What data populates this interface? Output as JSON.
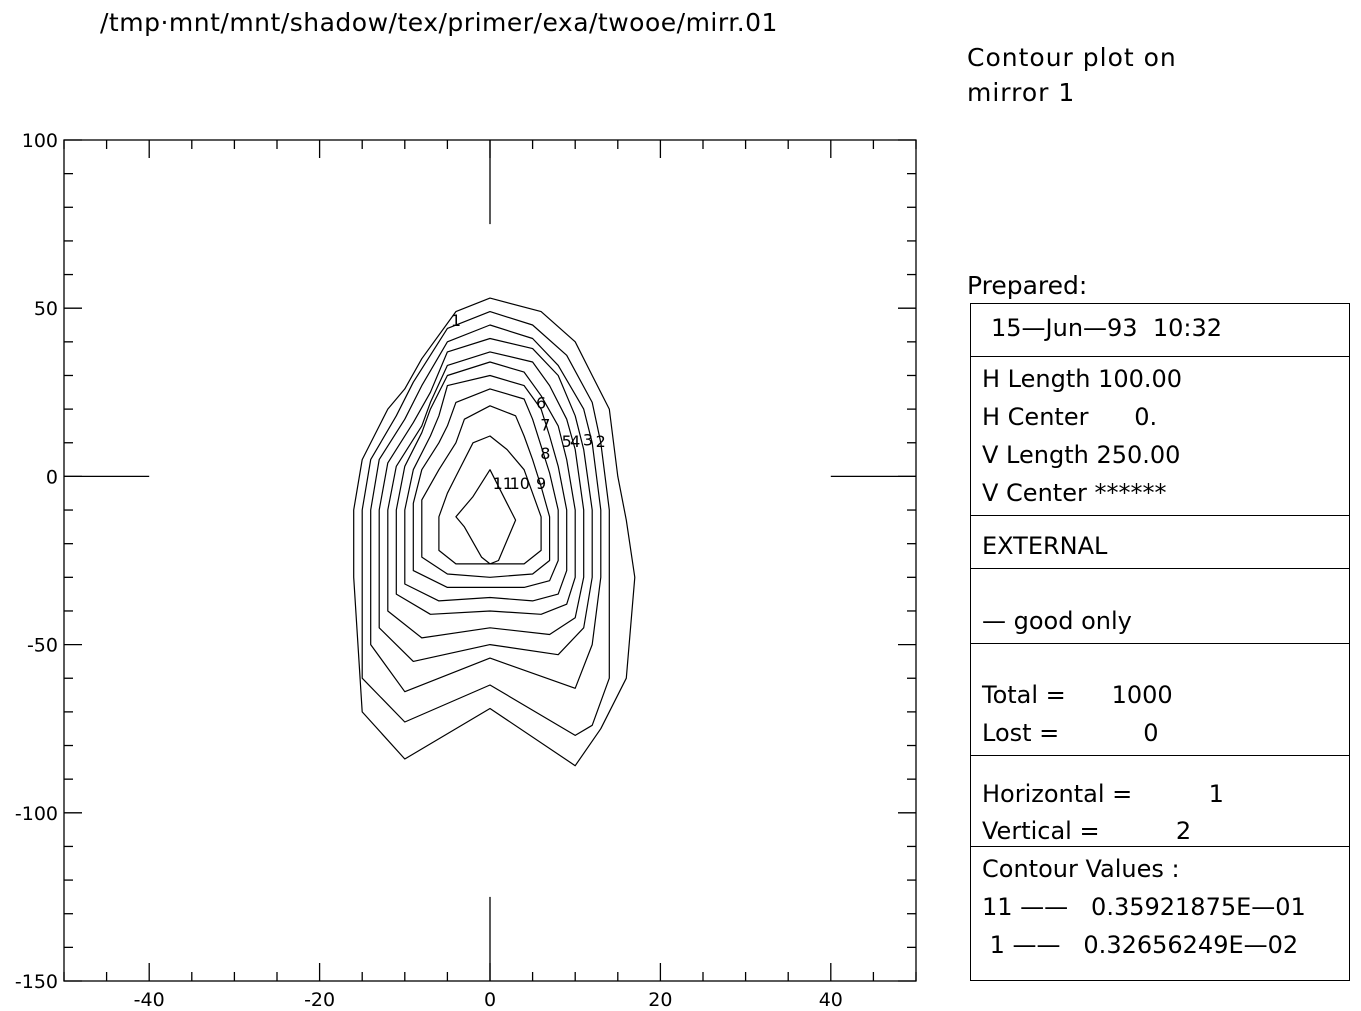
{
  "header": {
    "file_path": "/tmp·mnt/mnt/shadow/tex/primer/exa/twooe/mirr.01",
    "title_line1": "Contour plot on",
    "title_line2": "mirror 1"
  },
  "info_panel": {
    "prepared_label": "Prepared:",
    "date": "15—Jun—93  10:32",
    "h_length": "H Length 100.00",
    "h_center": "H Center      0.",
    "v_length": "V Length 250.00",
    "v_center": "V Center ******",
    "source": "EXTERNAL",
    "filter": "— good only",
    "total": "Total =      1000",
    "lost": "Lost =           0",
    "horizontal": "Horizontal =          1",
    "vertical": "Vertical =          2",
    "contour_header": "Contour Values :",
    "contour_max": "11 ——   0.35921875E—01",
    "contour_min": " 1 ——   0.32656249E—02"
  },
  "chart_data": {
    "type": "contour",
    "xlim": [
      -50,
      50
    ],
    "ylim": [
      -150,
      100
    ],
    "x_ticks": [
      -40,
      -20,
      0,
      20,
      40
    ],
    "x_tick_labels": [
      "-40",
      "-20",
      "0",
      "20",
      "40"
    ],
    "y_ticks": [
      100,
      50,
      0,
      -50,
      -100,
      -150
    ],
    "y_tick_labels": [
      "100",
      "50",
      "0",
      "-50",
      "-100",
      "-150"
    ],
    "minor_x_step": 5,
    "minor_y_step": 10,
    "center_marks": true,
    "grid": false,
    "contours": [
      {
        "level": 1,
        "label": "1",
        "label_at": [
          -4,
          46.5
        ],
        "points": [
          [
            -4,
            49
          ],
          [
            0,
            53
          ],
          [
            6,
            49
          ],
          [
            10,
            40
          ],
          [
            12,
            30
          ],
          [
            14,
            20
          ],
          [
            15,
            0
          ],
          [
            16,
            -13
          ],
          [
            17,
            -30
          ],
          [
            16,
            -60
          ],
          [
            13,
            -75
          ],
          [
            10,
            -86
          ],
          [
            0,
            -69
          ],
          [
            -10,
            -84
          ],
          [
            -15,
            -70
          ],
          [
            -16,
            -30
          ],
          [
            -16,
            -10
          ],
          [
            -15,
            5
          ],
          [
            -12,
            20
          ],
          [
            -10,
            26
          ],
          [
            -8,
            35
          ]
        ]
      },
      {
        "level": 2,
        "label": "2",
        "label_at": [
          13,
          10.5
        ],
        "points": [
          [
            -5,
            44
          ],
          [
            0,
            49
          ],
          [
            5,
            45
          ],
          [
            9,
            36
          ],
          [
            12,
            22
          ],
          [
            13,
            10
          ],
          [
            14,
            -10
          ],
          [
            14,
            -30
          ],
          [
            14,
            -60
          ],
          [
            12,
            -74
          ],
          [
            10,
            -77
          ],
          [
            0,
            -62
          ],
          [
            -10,
            -73
          ],
          [
            -15,
            -60
          ],
          [
            -15,
            -30
          ],
          [
            -15,
            -10
          ],
          [
            -14,
            5
          ],
          [
            -11,
            18
          ],
          [
            -9,
            28
          ]
        ]
      },
      {
        "level": 3,
        "label": "3",
        "label_at": [
          11.5,
          11
        ],
        "points": [
          [
            -5,
            40
          ],
          [
            0,
            45
          ],
          [
            5,
            41
          ],
          [
            8,
            33
          ],
          [
            11,
            20
          ],
          [
            12,
            10
          ],
          [
            13,
            -10
          ],
          [
            13,
            -30
          ],
          [
            12,
            -50
          ],
          [
            10,
            -63
          ],
          [
            0,
            -54
          ],
          [
            -10,
            -64
          ],
          [
            -14,
            -50
          ],
          [
            -14,
            -30
          ],
          [
            -14,
            -10
          ],
          [
            -13,
            5
          ],
          [
            -10,
            17
          ],
          [
            -8,
            27
          ]
        ]
      },
      {
        "level": 4,
        "label": "4",
        "label_at": [
          10,
          10.5
        ],
        "points": [
          [
            -5,
            37
          ],
          [
            0,
            41
          ],
          [
            5,
            38
          ],
          [
            8,
            30
          ],
          [
            10,
            18
          ],
          [
            11,
            8
          ],
          [
            12,
            -10
          ],
          [
            12,
            -30
          ],
          [
            11,
            -45
          ],
          [
            8,
            -53
          ],
          [
            0,
            -50
          ],
          [
            -9,
            -55
          ],
          [
            -13,
            -45
          ],
          [
            -13,
            -30
          ],
          [
            -13,
            -10
          ],
          [
            -12,
            4
          ],
          [
            -9,
            16
          ],
          [
            -7,
            25
          ]
        ]
      },
      {
        "level": 5,
        "label": "5",
        "label_at": [
          9,
          10.5
        ],
        "points": [
          [
            -5,
            33
          ],
          [
            0,
            37
          ],
          [
            5,
            34
          ],
          [
            7,
            27
          ],
          [
            9,
            17
          ],
          [
            10,
            8
          ],
          [
            11,
            -10
          ],
          [
            11,
            -30
          ],
          [
            10,
            -42
          ],
          [
            7,
            -47
          ],
          [
            0,
            -45
          ],
          [
            -8,
            -48
          ],
          [
            -12,
            -40
          ],
          [
            -12,
            -30
          ],
          [
            -12,
            -10
          ],
          [
            -11,
            3
          ],
          [
            -8,
            15
          ],
          [
            -7,
            22
          ]
        ]
      },
      {
        "level": 6,
        "label": "6",
        "label_at": [
          6,
          22
        ],
        "points": [
          [
            -5,
            30
          ],
          [
            0,
            34
          ],
          [
            4,
            31
          ],
          [
            6,
            24
          ],
          [
            8,
            15
          ],
          [
            9,
            5
          ],
          [
            10,
            -10
          ],
          [
            10,
            -30
          ],
          [
            9,
            -38
          ],
          [
            6,
            -41
          ],
          [
            0,
            -40
          ],
          [
            -7,
            -41
          ],
          [
            -11,
            -35
          ],
          [
            -11,
            -25
          ],
          [
            -11,
            -10
          ],
          [
            -10,
            3
          ],
          [
            -8,
            13
          ],
          [
            -7,
            20
          ]
        ]
      },
      {
        "level": 7,
        "label": "7",
        "label_at": [
          6.5,
          15.5
        ],
        "points": [
          [
            -5,
            27
          ],
          [
            0,
            30
          ],
          [
            4,
            27
          ],
          [
            6,
            20
          ],
          [
            7,
            12
          ],
          [
            8,
            3
          ],
          [
            9,
            -10
          ],
          [
            9,
            -28
          ],
          [
            8,
            -35
          ],
          [
            5,
            -37
          ],
          [
            0,
            -36
          ],
          [
            -6,
            -37
          ],
          [
            -10,
            -32
          ],
          [
            -10,
            -20
          ],
          [
            -10,
            -10
          ],
          [
            -9,
            2
          ],
          [
            -7,
            12
          ],
          [
            -6,
            18
          ]
        ]
      },
      {
        "level": 8,
        "label": "8",
        "label_at": [
          6.5,
          7
        ],
        "points": [
          [
            -4,
            22
          ],
          [
            0,
            26
          ],
          [
            4,
            23
          ],
          [
            5,
            17
          ],
          [
            6,
            9
          ],
          [
            7,
            1
          ],
          [
            8,
            -10
          ],
          [
            8,
            -25
          ],
          [
            7,
            -31
          ],
          [
            4,
            -33
          ],
          [
            0,
            -33
          ],
          [
            -5,
            -33
          ],
          [
            -9,
            -28
          ],
          [
            -9,
            -18
          ],
          [
            -9,
            -8
          ],
          [
            -8,
            2
          ],
          [
            -6,
            10
          ],
          [
            -5,
            15
          ]
        ]
      },
      {
        "level": 9,
        "label": "9",
        "label_at": [
          6,
          -2
        ],
        "points": [
          [
            -3,
            17
          ],
          [
            0,
            21
          ],
          [
            3,
            18
          ],
          [
            4,
            12
          ],
          [
            5,
            5
          ],
          [
            6,
            -3
          ],
          [
            7,
            -12
          ],
          [
            7,
            -25
          ],
          [
            5,
            -29
          ],
          [
            0,
            -30
          ],
          [
            -5,
            -29
          ],
          [
            -8,
            -24
          ],
          [
            -8,
            -15
          ],
          [
            -8,
            -7
          ],
          [
            -6,
            2
          ],
          [
            -4,
            10
          ]
        ]
      },
      {
        "level": 10,
        "label": "10",
        "label_at": [
          3.5,
          -2
        ],
        "points": [
          [
            -2,
            10
          ],
          [
            0,
            12
          ],
          [
            2,
            8
          ],
          [
            4,
            2
          ],
          [
            5,
            -5
          ],
          [
            6,
            -12
          ],
          [
            6,
            -22
          ],
          [
            4,
            -26
          ],
          [
            0,
            -26
          ],
          [
            -4,
            -26
          ],
          [
            -6,
            -22
          ],
          [
            -6,
            -12
          ],
          [
            -5,
            -5
          ],
          [
            -4,
            0
          ]
        ]
      },
      {
        "level": 11,
        "label": "11",
        "label_at": [
          1.5,
          -2
        ],
        "points": [
          [
            0,
            2
          ],
          [
            2,
            -8
          ],
          [
            3,
            -13
          ],
          [
            1,
            -25
          ],
          [
            0,
            -26
          ],
          [
            -1,
            -24
          ],
          [
            -3,
            -15
          ],
          [
            -4,
            -12
          ],
          [
            -2,
            -6
          ]
        ]
      }
    ]
  }
}
